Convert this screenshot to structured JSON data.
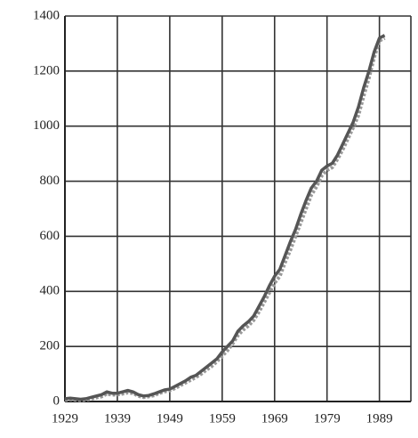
{
  "chart_data": {
    "type": "line",
    "x": [
      1929,
      1930,
      1931,
      1932,
      1933,
      1934,
      1935,
      1936,
      1937,
      1938,
      1939,
      1940,
      1941,
      1942,
      1943,
      1944,
      1945,
      1946,
      1947,
      1948,
      1949,
      1950,
      1951,
      1952,
      1953,
      1954,
      1955,
      1956,
      1957,
      1958,
      1959,
      1960,
      1961,
      1962,
      1963,
      1964,
      1965,
      1966,
      1967,
      1968,
      1969,
      1970,
      1971,
      1972,
      1973,
      1974,
      1975,
      1976,
      1977,
      1978,
      1979,
      1980,
      1981,
      1982,
      1983,
      1984,
      1985,
      1986,
      1987,
      1988,
      1989,
      1990
    ],
    "series": [
      {
        "color": "#555555",
        "style": "solid",
        "values": [
          10,
          12,
          10,
          8,
          10,
          15,
          20,
          25,
          35,
          30,
          30,
          35,
          40,
          35,
          25,
          20,
          22,
          28,
          35,
          42,
          45,
          55,
          65,
          75,
          88,
          95,
          110,
          125,
          140,
          155,
          180,
          200,
          220,
          255,
          275,
          290,
          310,
          345,
          380,
          420,
          455,
          480,
          530,
          580,
          625,
          680,
          730,
          775,
          800,
          840,
          855,
          865,
          895,
          935,
          975,
          1015,
          1070,
          1140,
          1200,
          1270,
          1320,
          1330
        ]
      },
      {
        "color": "#999999",
        "style": "dotted",
        "values": [
          5,
          8,
          6,
          5,
          6,
          10,
          14,
          18,
          28,
          24,
          25,
          28,
          32,
          30,
          20,
          15,
          18,
          22,
          30,
          36,
          40,
          48,
          58,
          68,
          78,
          88,
          100,
          115,
          128,
          145,
          165,
          185,
          210,
          240,
          260,
          275,
          295,
          325,
          360,
          395,
          430,
          455,
          505,
          550,
          600,
          650,
          700,
          750,
          780,
          820,
          840,
          850,
          880,
          915,
          955,
          995,
          1040,
          1110,
          1175,
          1250,
          1310,
          1320
        ]
      }
    ],
    "xlim": [
      1929,
      1995
    ],
    "xticks": [
      1929,
      1939,
      1949,
      1959,
      1969,
      1979,
      1989
    ],
    "ylim": [
      0,
      1400
    ],
    "yticks": [
      0,
      200,
      400,
      600,
      800,
      1000,
      1200,
      1400
    ],
    "grid": true
  }
}
